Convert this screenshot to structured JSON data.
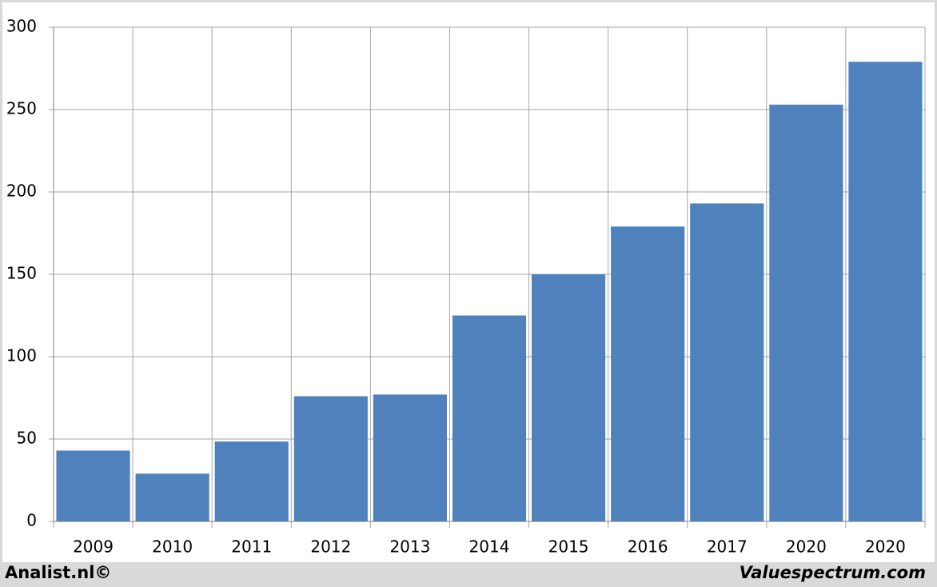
{
  "chart_data": {
    "type": "bar",
    "categories": [
      "2009",
      "2010",
      "2011",
      "2012",
      "2013",
      "2014",
      "2015",
      "2016",
      "2017",
      "2020",
      "2020"
    ],
    "values": [
      43,
      29,
      48.5,
      76,
      77,
      125,
      150,
      179,
      193,
      253,
      279
    ],
    "color": "#4f81bd",
    "ylim": [
      0,
      300
    ],
    "yticks": [
      0,
      50,
      100,
      150,
      200,
      250,
      300
    ],
    "grid": true,
    "footer_left": "Analist.nl©",
    "footer_right": "Valuespectrum.com"
  }
}
